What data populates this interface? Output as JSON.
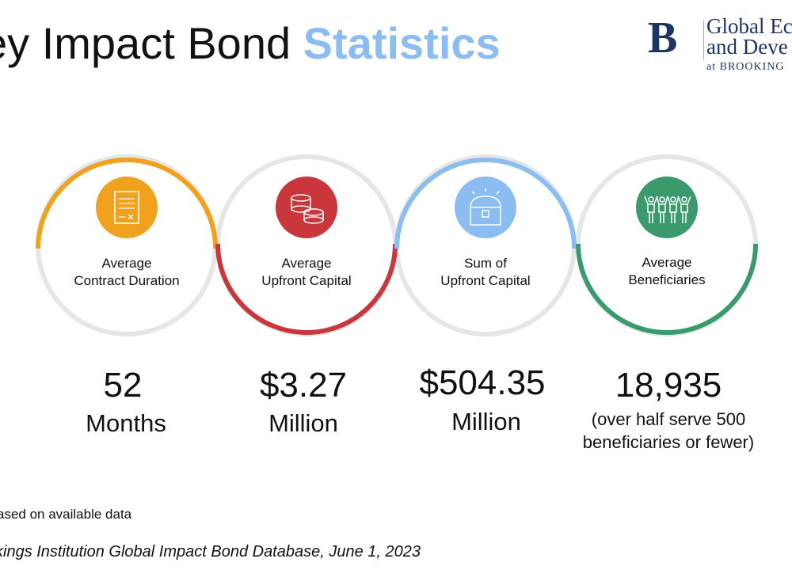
{
  "title": {
    "prefix": "ey Impact Bond ",
    "highlight": "Statistics"
  },
  "logo": {
    "mark": "B",
    "line1": "Global Ec",
    "line2": "and Deve",
    "line3": "at BROOKING"
  },
  "colors": {
    "orange": "#f0a11e",
    "red": "#c9373c",
    "blue": "#8cbdf2",
    "green": "#3a9a6b",
    "ring": "#e6e6e6"
  },
  "stats": [
    {
      "label1": "Average",
      "label2": "Contract Duration",
      "value": "52",
      "unit": "Months",
      "icon": "contract-icon"
    },
    {
      "label1": "Average",
      "label2": "Upfront Capital",
      "value": "$3.27",
      "unit": "Million",
      "icon": "coins-icon"
    },
    {
      "label1": "Sum of",
      "label2": "Upfront Capital",
      "value": "$504.35",
      "unit": "Million",
      "icon": "treasure-chest-icon"
    },
    {
      "label1": "Average",
      "label2": "Beneficiaries",
      "value": "18,935",
      "unit": "(over half serve 500",
      "unit2": "beneficiaries or fewer)",
      "icon": "people-icon"
    }
  ],
  "footnote": "ased on available data",
  "source": "kings Institution Global Impact Bond Database, June 1, 2023"
}
